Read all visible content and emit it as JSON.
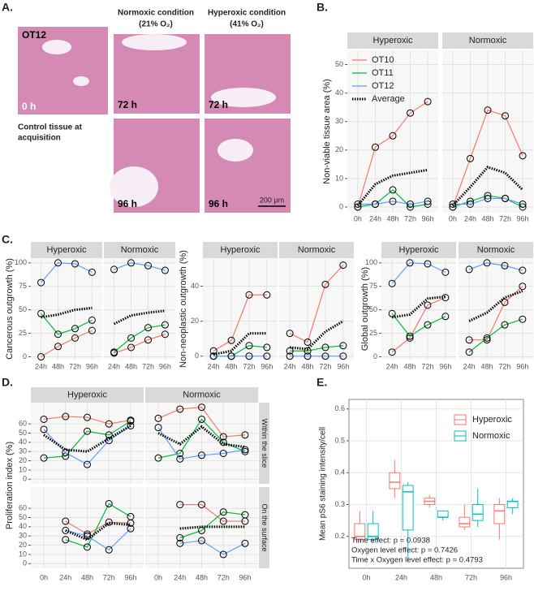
{
  "panel_a": {
    "label": "A.",
    "control_id": "OT12",
    "control_time": "0 h",
    "control_caption_1": "Control tissue at",
    "control_caption_2": "acquisition",
    "normoxic_header": "Normoxic condition",
    "normoxic_sub": "(21% O₂)",
    "hyperoxic_header": "Hyperoxic condition",
    "hyperoxic_sub": "(41% O₂)",
    "times": [
      "72 h",
      "72 h",
      "96 h",
      "96 h"
    ],
    "scale_bar": "200 μm"
  },
  "chart_data": [
    {
      "type": "facet-line",
      "label": "B.",
      "y_title": "Non-viable tissue area (%)",
      "columns": [
        "Hyperoxic",
        "Normoxic"
      ],
      "categories": [
        "0h",
        "24h",
        "48h",
        "72h",
        "96h"
      ],
      "ylim": [
        -2,
        55
      ],
      "yticks": [
        0,
        10,
        20,
        30,
        40,
        50
      ],
      "grid": true,
      "legend": [
        {
          "name": "OT10",
          "color": "#F8766D"
        },
        {
          "name": "OT11",
          "color": "#00BA38"
        },
        {
          "name": "OT12",
          "color": "#619CFF"
        },
        {
          "name": "Average",
          "color": "#000000",
          "dashed": true
        }
      ],
      "panels": [
        {
          "series": [
            {
              "color": "#F8766D",
              "values": [
                0,
                21,
                25,
                33,
                37
              ]
            },
            {
              "color": "#00BA38",
              "values": [
                0,
                1,
                6,
                0,
                1
              ]
            },
            {
              "color": "#619CFF",
              "values": [
                1,
                1,
                2,
                1,
                2
              ]
            },
            {
              "color": "#000000",
              "dashed": true,
              "values": [
                0.5,
                8,
                11,
                12,
                13
              ]
            }
          ]
        },
        {
          "series": [
            {
              "color": "#F8766D",
              "values": [
                0,
                17,
                34,
                32,
                18
              ]
            },
            {
              "color": "#00BA38",
              "values": [
                0,
                2,
                4,
                3,
                0
              ]
            },
            {
              "color": "#619CFF",
              "values": [
                1,
                1,
                3,
                3,
                1
              ]
            },
            {
              "color": "#000000",
              "dashed": true,
              "values": [
                0.5,
                7,
                14,
                12,
                6
              ]
            }
          ]
        }
      ]
    },
    {
      "type": "facet-line",
      "label": "C.",
      "y_title": "Cancerous outgrowth (%)",
      "columns": [
        "Hyperoxic",
        "Normoxic"
      ],
      "categories": [
        "24h",
        "48h",
        "72h",
        "96h"
      ],
      "ylim": [
        -3,
        105
      ],
      "yticks": [
        0,
        25,
        50,
        75,
        100
      ],
      "grid": true,
      "panels": [
        {
          "series": [
            {
              "color": "#F8766D",
              "values": [
                0,
                11,
                20,
                28
              ]
            },
            {
              "color": "#00BA38",
              "values": [
                46,
                24,
                30,
                39
              ]
            },
            {
              "color": "#619CFF",
              "values": [
                79,
                100,
                99,
                90
              ]
            },
            {
              "color": "#000000",
              "dashed": true,
              "values": [
                42,
                45,
                50,
                52
              ]
            }
          ]
        },
        {
          "series": [
            {
              "color": "#F8766D",
              "values": [
                4,
                10,
                18,
                24
              ]
            },
            {
              "color": "#00BA38",
              "values": [
                5,
                20,
                31,
                34
              ]
            },
            {
              "color": "#619CFF",
              "values": [
                93,
                100,
                97,
                92
              ]
            },
            {
              "color": "#000000",
              "dashed": true,
              "values": [
                35,
                44,
                47,
                49
              ]
            }
          ]
        }
      ]
    },
    {
      "type": "facet-line",
      "y_title": "Non-neoplastic outgrowth (%)",
      "columns": [
        "Hyperoxic",
        "Normoxic"
      ],
      "categories": [
        "24h",
        "48h",
        "72h",
        "96h"
      ],
      "ylim": [
        -2,
        56
      ],
      "yticks": [
        0,
        20,
        40
      ],
      "grid": true,
      "panels": [
        {
          "series": [
            {
              "color": "#F8766D",
              "values": [
                3,
                9,
                35,
                35
              ]
            },
            {
              "color": "#00BA38",
              "values": [
                0,
                0,
                6,
                5
              ]
            },
            {
              "color": "#619CFF",
              "values": [
                0,
                0,
                0,
                0
              ]
            },
            {
              "color": "#000000",
              "dashed": true,
              "values": [
                1,
                3,
                13,
                13
              ]
            }
          ]
        },
        {
          "series": [
            {
              "color": "#F8766D",
              "values": [
                13,
                8,
                41,
                52
              ]
            },
            {
              "color": "#00BA38",
              "values": [
                3,
                3,
                5,
                6
              ]
            },
            {
              "color": "#619CFF",
              "values": [
                0,
                0,
                0,
                0
              ]
            },
            {
              "color": "#000000",
              "dashed": true,
              "values": [
                5,
                4,
                14,
                20
              ]
            }
          ]
        }
      ]
    },
    {
      "type": "facet-line",
      "y_title": "Global outgrowth (%)",
      "columns": [
        "Hyperoxic",
        "Normoxic"
      ],
      "categories": [
        "24h",
        "48h",
        "72h",
        "96h"
      ],
      "ylim": [
        -3,
        105
      ],
      "yticks": [
        0,
        25,
        50,
        75,
        100
      ],
      "grid": true,
      "panels": [
        {
          "series": [
            {
              "color": "#F8766D",
              "values": [
                5,
                20,
                55,
                63
              ]
            },
            {
              "color": "#00BA38",
              "values": [
                46,
                22,
                34,
                43
              ]
            },
            {
              "color": "#619CFF",
              "values": [
                78,
                100,
                99,
                90
              ]
            },
            {
              "color": "#000000",
              "dashed": true,
              "values": [
                42,
                45,
                62,
                64
              ]
            }
          ]
        },
        {
          "series": [
            {
              "color": "#F8766D",
              "values": [
                18,
                18,
                58,
                75
              ]
            },
            {
              "color": "#00BA38",
              "values": [
                5,
                20,
                34,
                40
              ]
            },
            {
              "color": "#619CFF",
              "values": [
                93,
                100,
                97,
                92
              ]
            },
            {
              "color": "#000000",
              "dashed": true,
              "values": [
                38,
                47,
                63,
                70
              ]
            }
          ]
        }
      ]
    },
    {
      "type": "facet-line",
      "label": "D.",
      "y_title": "Proliferation index (%)",
      "columns": [
        "Hyperoxic",
        "Normoxic"
      ],
      "rows": [
        "Within the slice",
        "On the surface"
      ],
      "categories": [
        "0h",
        "24h",
        "48h",
        "72h",
        "96h"
      ],
      "ylim": [
        -5,
        83
      ],
      "yticks": [
        0,
        10,
        20,
        30,
        40,
        50,
        60
      ],
      "grid": true,
      "panels": [
        {
          "series": [
            {
              "color": "#F8766D",
              "values": [
                65,
                68,
                67,
                60,
                64
              ]
            },
            {
              "color": "#00BA38",
              "values": [
                23,
                25,
                52,
                48,
                63
              ]
            },
            {
              "color": "#619CFF",
              "values": [
                54,
                29,
                16,
                42,
                58
              ]
            },
            {
              "color": "#000000",
              "dashed": true,
              "values": [
                48,
                32,
                30,
                44,
                58
              ]
            }
          ]
        },
        {
          "series": [
            {
              "color": "#F8766D",
              "values": [
                66,
                76,
                78,
                46,
                48
              ]
            },
            {
              "color": "#00BA38",
              "values": [
                23,
                28,
                65,
                40,
                30
              ]
            },
            {
              "color": "#619CFF",
              "values": [
                56,
                22,
                26,
                28,
                32
              ]
            },
            {
              "color": "#000000",
              "dashed": true,
              "values": [
                50,
                38,
                57,
                38,
                35
              ]
            }
          ]
        },
        {
          "series": [
            {
              "color": "#F8766D",
              "values": [
                null,
                46,
                32,
                45,
                44
              ]
            },
            {
              "color": "#00BA38",
              "values": [
                null,
                26,
                18,
                65,
                51
              ]
            },
            {
              "color": "#619CFF",
              "values": [
                null,
                36,
                30,
                15,
                38
              ]
            },
            {
              "color": "#000000",
              "dashed": true,
              "values": [
                null,
                36,
                26,
                44,
                42
              ]
            }
          ]
        },
        {
          "series": [
            {
              "color": "#F8766D",
              "values": [
                null,
                64,
                64,
                46,
                46
              ]
            },
            {
              "color": "#00BA38",
              "values": [
                null,
                28,
                36,
                56,
                53
              ]
            },
            {
              "color": "#619CFF",
              "values": [
                null,
                22,
                25,
                10,
                22
              ]
            },
            {
              "color": "#000000",
              "dashed": true,
              "values": [
                null,
                38,
                40,
                40,
                40
              ]
            }
          ]
        }
      ]
    },
    {
      "type": "boxplot",
      "label": "E.",
      "y_title": "Mean pS6 staining intensity/cell",
      "categories": [
        "0h",
        "24h",
        "48h",
        "72h",
        "96h"
      ],
      "ylim": [
        0.1,
        0.63
      ],
      "yticks": [
        0.2,
        0.3,
        0.4,
        0.5,
        0.6
      ],
      "grid": true,
      "series": [
        {
          "name": "Hyperoxic",
          "color": "#F8766D",
          "min": [
            0.18,
            0.32,
            0.29,
            0.22,
            0.19
          ],
          "q1": [
            0.19,
            0.35,
            0.3,
            0.23,
            0.24
          ],
          "median": [
            0.2,
            0.37,
            0.31,
            0.24,
            0.28
          ],
          "q3": [
            0.24,
            0.4,
            0.32,
            0.26,
            0.3
          ],
          "max": [
            0.28,
            0.44,
            0.33,
            0.3,
            0.32
          ]
        },
        {
          "name": "Normoxic",
          "color": "#00BFC4",
          "min": [
            0.18,
            0.12,
            0.25,
            0.23,
            0.27
          ],
          "q1": [
            0.19,
            0.22,
            0.26,
            0.25,
            0.29
          ],
          "median": [
            0.2,
            0.34,
            0.26,
            0.27,
            0.31
          ],
          "q3": [
            0.24,
            0.36,
            0.28,
            0.3,
            0.31
          ],
          "max": [
            0.28,
            0.37,
            0.28,
            0.35,
            0.32
          ]
        }
      ],
      "annotations": [
        "Time effect: p = 0.0938",
        "Oxygen level effect: p = 0.7426",
        "Time x Oxygen level effect: p = 0.4793"
      ]
    }
  ]
}
